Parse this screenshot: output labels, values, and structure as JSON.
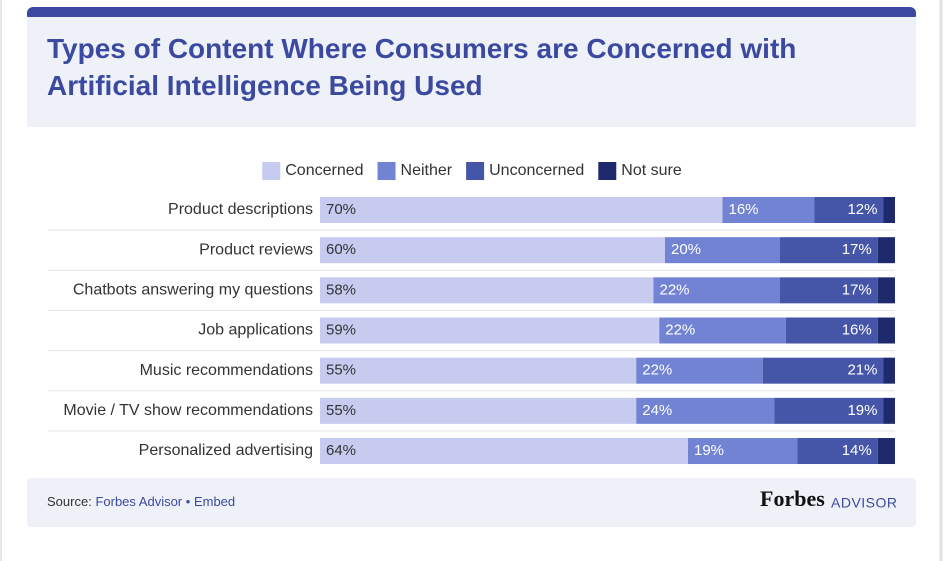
{
  "chart_data": {
    "type": "stacked-bar-horizontal",
    "title": "Types of Content Where Consumers are Concerned with Artificial Intelligence Being Used",
    "categories": [
      "Product descriptions",
      "Product reviews",
      "Chatbots answering my questions",
      "Job applications",
      "Music recommendations",
      "Movie / TV show recommendations",
      "Personalized advertising"
    ],
    "xlim": [
      0,
      100
    ],
    "series": [
      {
        "name": "Concerned",
        "color": "#c6cbef",
        "values": [
          70,
          60,
          58,
          59,
          55,
          55,
          64
        ],
        "value_labels": [
          "70%",
          "60%",
          "58%",
          "59%",
          "55%",
          "55%",
          "64%"
        ]
      },
      {
        "name": "Neither",
        "color": "#7283d4",
        "values": [
          16,
          20,
          22,
          22,
          22,
          24,
          19
        ],
        "value_labels": [
          "16%",
          "20%",
          "22%",
          "22%",
          "22%",
          "24%",
          "19%"
        ]
      },
      {
        "name": "Unconcerned",
        "color": "#4555a8",
        "values": [
          12,
          17,
          17,
          16,
          21,
          19,
          14
        ],
        "value_labels": [
          "12%",
          "17%",
          "17%",
          "16%",
          "21%",
          "19%",
          "14%"
        ]
      },
      {
        "name": "Not sure",
        "color": "#1f2a6c",
        "values": [
          2,
          3,
          3,
          3,
          2,
          2,
          3
        ]
      }
    ]
  },
  "footer": {
    "source_label": "Source:",
    "source_links": [
      "Forbes Advisor",
      "Embed"
    ],
    "separator": "•",
    "logo": "Forbes",
    "logo_suffix": "ADVISOR"
  }
}
